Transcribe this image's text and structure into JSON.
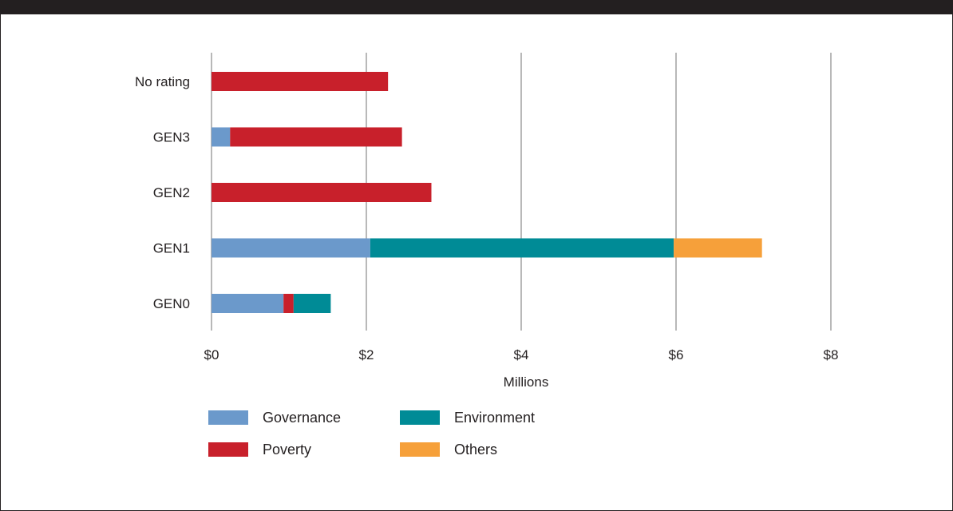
{
  "chart_data": {
    "type": "bar",
    "orientation": "horizontal",
    "stacked": true,
    "categories": [
      "No rating",
      "GEN3",
      "GEN2",
      "GEN1",
      "GEN0"
    ],
    "series": [
      {
        "name": "Governance",
        "color": "#6b99cb",
        "values": [
          0,
          0.24,
          0,
          2.05,
          0.93
        ]
      },
      {
        "name": "Poverty",
        "color": "#c8202b",
        "values": [
          2.28,
          2.22,
          2.84,
          0,
          0.13
        ]
      },
      {
        "name": "Environment",
        "color": "#008b96",
        "values": [
          0,
          0,
          0,
          3.92,
          0.48
        ]
      },
      {
        "name": "Others",
        "color": "#f6a03a",
        "values": [
          0,
          0,
          0,
          1.14,
          0
        ]
      }
    ],
    "xlabel": "Millions",
    "xlim": [
      0,
      8
    ],
    "x_ticks": [
      0,
      2,
      4,
      6,
      8
    ],
    "x_tick_labels": [
      "$0",
      "$2",
      "$4",
      "$6",
      "$8"
    ],
    "grid": "vertical",
    "legend_position": "bottom-left",
    "legend_order": [
      "Governance",
      "Environment",
      "Poverty",
      "Others"
    ]
  }
}
